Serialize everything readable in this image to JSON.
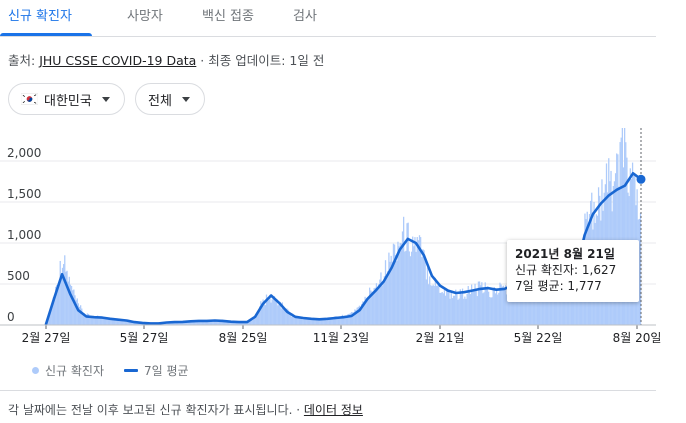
{
  "tabs": [
    {
      "label": "신규 확진자",
      "active": true
    },
    {
      "label": "사망자",
      "active": false
    },
    {
      "label": "백신 접종",
      "active": false
    },
    {
      "label": "검사",
      "active": false
    }
  ],
  "source": {
    "prefix": "출처: ",
    "link": "JHU CSSE COVID-19 Data",
    "separator": " · ",
    "updated": "최종 업데이트: 1일 전"
  },
  "filters": {
    "region": {
      "label": "대한민국",
      "icon": "korea-flag-icon"
    },
    "scope": {
      "label": "전체"
    }
  },
  "chart_data": {
    "type": "bar",
    "title": "",
    "x_tick_labels": [
      "2월 27일",
      "5월 27일",
      "8월 25일",
      "11월 23일",
      "2월 21일",
      "5월 22일",
      "8월 20일"
    ],
    "y_tick_labels": [
      "0",
      "500",
      "1,000",
      "1,500",
      "2,000"
    ],
    "ylim": [
      0,
      2000
    ],
    "x_start": "2020-02-20",
    "x_end": "2021-08-21",
    "series": [
      {
        "name": "신규 확진자",
        "kind": "daily_bars",
        "color": "#aecbfa",
        "weekly_values": [
          20,
          370,
          810,
          480,
          230,
          120,
          95,
          110,
          80,
          70,
          60,
          35,
          30,
          25,
          20,
          35,
          40,
          35,
          50,
          45,
          55,
          50,
          60,
          40,
          35,
          30,
          60,
          250,
          330,
          300,
          200,
          120,
          90,
          70,
          60,
          70,
          80,
          100,
          110,
          200,
          270,
          440,
          570,
          720,
          950,
          1100,
          1020,
          960,
          650,
          500,
          420,
          380,
          370,
          400,
          430,
          450,
          380,
          440,
          470,
          550,
          610,
          680,
          690,
          650,
          590,
          580,
          620,
          690,
          1250,
          1500,
          1580,
          1700,
          1900,
          2100,
          1627
        ]
      },
      {
        "name": "7일 평균",
        "kind": "line",
        "color": "#1967d2",
        "weekly_values": [
          10,
          320,
          620,
          380,
          180,
          105,
          95,
          90,
          75,
          65,
          55,
          35,
          25,
          20,
          20,
          30,
          35,
          38,
          45,
          50,
          50,
          55,
          50,
          40,
          35,
          35,
          100,
          260,
          360,
          270,
          160,
          100,
          85,
          75,
          70,
          75,
          85,
          95,
          110,
          180,
          320,
          420,
          530,
          700,
          920,
          1050,
          1000,
          850,
          600,
          480,
          420,
          390,
          400,
          420,
          440,
          450,
          430,
          440,
          480,
          540,
          620,
          670,
          680,
          660,
          620,
          640,
          700,
          1100,
          1350,
          1480,
          1580,
          1650,
          1700,
          1850,
          1777
        ]
      }
    ],
    "tooltip": {
      "date": "2021년 8월 21일",
      "cases_label": "신규 확진자: 1,627",
      "avg_label": "7일 평균: 1,777"
    }
  },
  "legend": {
    "bars_label": "신규 확진자",
    "line_label": "7일 평균"
  },
  "footnote": {
    "text": "각 날짜에는 전날 이후 보고된 신규 확진자가 표시됩니다.",
    "separator": " · ",
    "link": "데이터 정보"
  }
}
